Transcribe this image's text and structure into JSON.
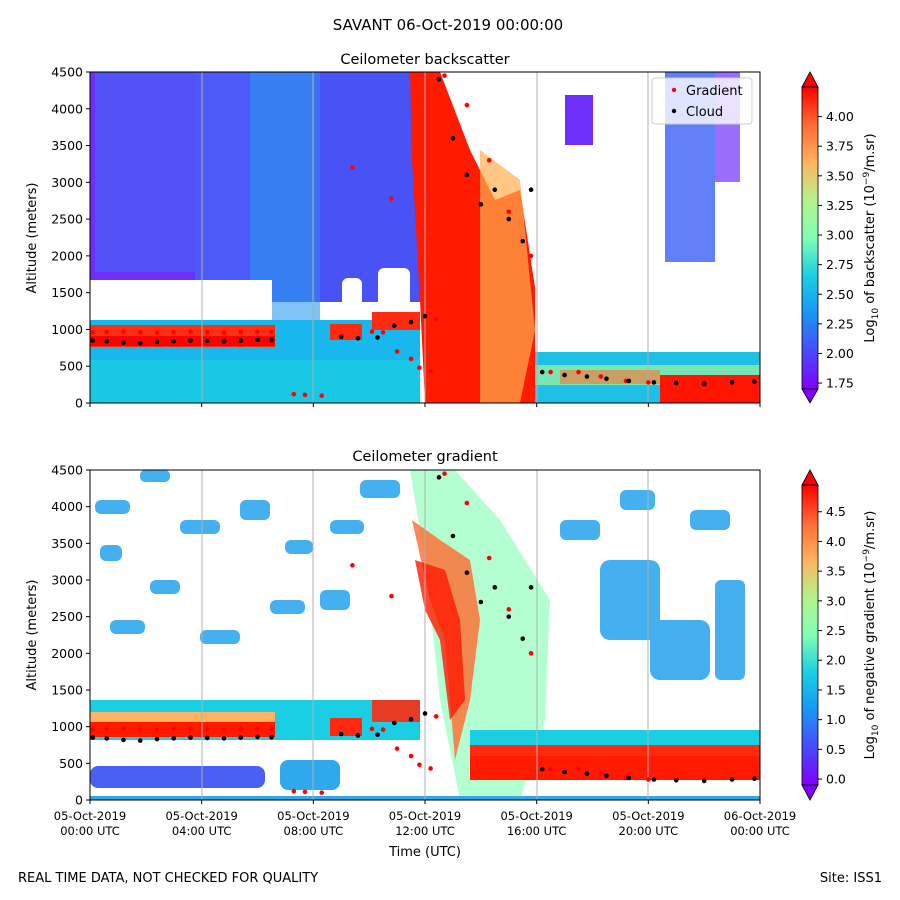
{
  "figure": {
    "suptitle": "SAVANT 06-Oct-2019 00:00:00",
    "footer_left": "REAL TIME DATA, NOT CHECKED FOR QUALITY",
    "footer_right": "Site: ISS1"
  },
  "chart_data": [
    {
      "type": "heatmap",
      "title": "Ceilometer backscatter",
      "xlabel": "",
      "ylabel": "Altitude (meters)",
      "xlim": [
        0,
        24
      ],
      "ylim": [
        0,
        4500
      ],
      "x_ticks": [
        0,
        4,
        8,
        12,
        16,
        20,
        24
      ],
      "x_tick_labels": [],
      "y_ticks": [
        0,
        500,
        1000,
        1500,
        2000,
        2500,
        3000,
        3500,
        4000,
        4500
      ],
      "y_tick_labels": [
        "0",
        "500",
        "1000",
        "1500",
        "2000",
        "2500",
        "3000",
        "3500",
        "4000",
        "4500"
      ],
      "grid": "vertical",
      "legend_position": "top-right",
      "legend": [
        "Gradient",
        "Cloud"
      ],
      "colorbar": {
        "label": "Log10 of backscatter (10⁻⁹/m.sr)",
        "range": [
          1.7,
          4.25
        ],
        "ticks": [
          1.75,
          2.0,
          2.25,
          2.5,
          2.75,
          3.0,
          3.25,
          3.5,
          3.75,
          4.0
        ],
        "tick_labels": [
          "1.75",
          "2.00",
          "2.25",
          "2.50",
          "2.75",
          "3.00",
          "3.25",
          "3.50",
          "3.75",
          "4.00"
        ],
        "colormap": "rainbow"
      },
      "series": [
        {
          "name": "Gradient",
          "color": "#ff0000",
          "points": [
            [
              0.1,
              960
            ],
            [
              0.6,
              965
            ],
            [
              1.2,
              970
            ],
            [
              1.8,
              960
            ],
            [
              2.4,
              955
            ],
            [
              3.0,
              965
            ],
            [
              3.6,
              970
            ],
            [
              4.2,
              965
            ],
            [
              4.8,
              960
            ],
            [
              5.4,
              965
            ],
            [
              6.0,
              970
            ],
            [
              6.5,
              965
            ],
            [
              7.3,
              120
            ],
            [
              7.7,
              110
            ],
            [
              8.3,
              100
            ],
            [
              9.4,
              3200
            ],
            [
              10.1,
              970
            ],
            [
              10.5,
              960
            ],
            [
              10.8,
              2780
            ],
            [
              11.0,
              700
            ],
            [
              11.5,
              600
            ],
            [
              11.8,
              480
            ],
            [
              12.2,
              430
            ],
            [
              12.4,
              1140
            ],
            [
              12.7,
              4450
            ],
            [
              13.5,
              4050
            ],
            [
              14.3,
              3300
            ],
            [
              15.0,
              2600
            ],
            [
              15.8,
              2000
            ],
            [
              16.5,
              420
            ],
            [
              17.5,
              420
            ],
            [
              18.3,
              360
            ],
            [
              19.2,
              300
            ],
            [
              20.0,
              280
            ],
            [
              21.0,
              275
            ],
            [
              22.0,
              280
            ],
            [
              23.0,
              285
            ],
            [
              23.8,
              300
            ]
          ]
        },
        {
          "name": "Cloud",
          "color": "#000000",
          "points": [
            [
              0.1,
              850
            ],
            [
              0.6,
              840
            ],
            [
              1.2,
              820
            ],
            [
              1.8,
              810
            ],
            [
              2.4,
              830
            ],
            [
              3.0,
              840
            ],
            [
              3.6,
              850
            ],
            [
              4.2,
              845
            ],
            [
              4.8,
              840
            ],
            [
              5.4,
              850
            ],
            [
              6.0,
              860
            ],
            [
              6.5,
              855
            ],
            [
              9.0,
              900
            ],
            [
              9.6,
              880
            ],
            [
              10.3,
              890
            ],
            [
              10.9,
              1050
            ],
            [
              11.5,
              1100
            ],
            [
              12.0,
              1180
            ],
            [
              12.5,
              4400
            ],
            [
              13.0,
              3600
            ],
            [
              13.5,
              3100
            ],
            [
              14.0,
              2700
            ],
            [
              14.5,
              2900
            ],
            [
              15.0,
              2500
            ],
            [
              15.5,
              2200
            ],
            [
              15.8,
              2900
            ],
            [
              16.2,
              420
            ],
            [
              17.0,
              380
            ],
            [
              17.8,
              360
            ],
            [
              18.5,
              330
            ],
            [
              19.3,
              300
            ],
            [
              20.2,
              280
            ],
            [
              21.0,
              270
            ],
            [
              22.0,
              260
            ],
            [
              23.0,
              280
            ],
            [
              23.8,
              290
            ]
          ]
        }
      ]
    },
    {
      "type": "heatmap",
      "title": "Ceilometer gradient",
      "xlabel": "Time (UTC)",
      "ylabel": "Altitude (meters)",
      "xlim": [
        0,
        24
      ],
      "ylim": [
        0,
        4500
      ],
      "x_ticks": [
        0,
        4,
        8,
        12,
        16,
        20,
        24
      ],
      "x_tick_labels": [
        [
          "05-Oct-2019",
          "00:00 UTC"
        ],
        [
          "05-Oct-2019",
          "04:00 UTC"
        ],
        [
          "05-Oct-2019",
          "08:00 UTC"
        ],
        [
          "05-Oct-2019",
          "12:00 UTC"
        ],
        [
          "05-Oct-2019",
          "16:00 UTC"
        ],
        [
          "05-Oct-2019",
          "20:00 UTC"
        ],
        [
          "06-Oct-2019",
          "00:00 UTC"
        ]
      ],
      "y_ticks": [
        0,
        500,
        1000,
        1500,
        2000,
        2500,
        3000,
        3500,
        4000,
        4500
      ],
      "y_tick_labels": [
        "0",
        "500",
        "1000",
        "1500",
        "2000",
        "2500",
        "3000",
        "3500",
        "4000",
        "4500"
      ],
      "grid": "vertical",
      "colorbar": {
        "label": "Log10 of negative gradient (10⁻⁹/m.sr)",
        "range": [
          -0.1,
          4.95
        ],
        "ticks": [
          0.0,
          0.5,
          1.0,
          1.5,
          2.0,
          2.5,
          3.0,
          3.5,
          4.0,
          4.5
        ],
        "tick_labels": [
          "0.0",
          "0.5",
          "1.0",
          "1.5",
          "2.0",
          "2.5",
          "3.0",
          "3.5",
          "4.0",
          "4.5"
        ],
        "colormap": "rainbow"
      },
      "series": [
        {
          "name": "Gradient",
          "color": "#ff0000",
          "points": [
            [
              0.1,
              960
            ],
            [
              0.6,
              965
            ],
            [
              1.2,
              970
            ],
            [
              1.8,
              960
            ],
            [
              2.4,
              955
            ],
            [
              3.0,
              965
            ],
            [
              3.6,
              970
            ],
            [
              4.2,
              965
            ],
            [
              4.8,
              960
            ],
            [
              5.4,
              965
            ],
            [
              6.0,
              970
            ],
            [
              6.5,
              965
            ],
            [
              7.3,
              120
            ],
            [
              7.7,
              110
            ],
            [
              8.3,
              100
            ],
            [
              9.4,
              3200
            ],
            [
              10.1,
              970
            ],
            [
              10.5,
              960
            ],
            [
              10.8,
              2780
            ],
            [
              11.0,
              700
            ],
            [
              11.5,
              600
            ],
            [
              11.8,
              480
            ],
            [
              12.2,
              430
            ],
            [
              12.4,
              1140
            ],
            [
              12.7,
              4450
            ],
            [
              13.5,
              4050
            ],
            [
              14.3,
              3300
            ],
            [
              15.0,
              2600
            ],
            [
              15.8,
              2000
            ],
            [
              16.5,
              420
            ],
            [
              17.5,
              420
            ],
            [
              18.3,
              360
            ],
            [
              19.2,
              300
            ],
            [
              20.0,
              280
            ],
            [
              21.0,
              275
            ],
            [
              22.0,
              280
            ],
            [
              23.0,
              285
            ],
            [
              23.8,
              300
            ]
          ]
        },
        {
          "name": "Cloud",
          "color": "#000000",
          "points": [
            [
              0.1,
              850
            ],
            [
              0.6,
              840
            ],
            [
              1.2,
              820
            ],
            [
              1.8,
              810
            ],
            [
              2.4,
              830
            ],
            [
              3.0,
              840
            ],
            [
              3.6,
              850
            ],
            [
              4.2,
              845
            ],
            [
              4.8,
              840
            ],
            [
              5.4,
              850
            ],
            [
              6.0,
              860
            ],
            [
              6.5,
              855
            ],
            [
              9.0,
              900
            ],
            [
              9.6,
              880
            ],
            [
              10.3,
              890
            ],
            [
              10.9,
              1050
            ],
            [
              11.5,
              1100
            ],
            [
              12.0,
              1180
            ],
            [
              12.5,
              4400
            ],
            [
              13.0,
              3600
            ],
            [
              13.5,
              3100
            ],
            [
              14.0,
              2700
            ],
            [
              14.5,
              2900
            ],
            [
              15.0,
              2500
            ],
            [
              15.5,
              2200
            ],
            [
              15.8,
              2900
            ],
            [
              16.2,
              420
            ],
            [
              17.0,
              380
            ],
            [
              17.8,
              360
            ],
            [
              18.5,
              330
            ],
            [
              19.3,
              300
            ],
            [
              20.2,
              280
            ],
            [
              21.0,
              270
            ],
            [
              22.0,
              260
            ],
            [
              23.0,
              280
            ],
            [
              23.8,
              290
            ]
          ]
        }
      ]
    }
  ]
}
